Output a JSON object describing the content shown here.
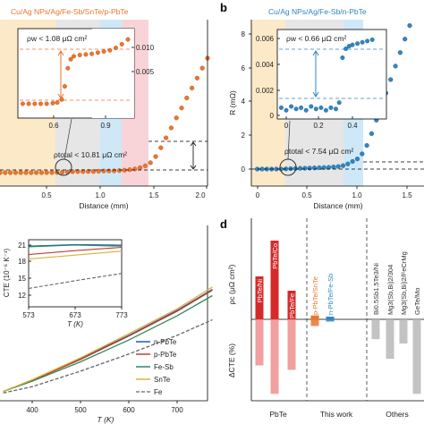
{
  "colors": {
    "orange": "#e9762f",
    "blue": "#2f86c4",
    "red": "#d42a2a",
    "red_light": "#ef8e8e",
    "grey": "#8c8c8c",
    "grey_light": "#b8b8b8",
    "n_pbte": "#1f5fa8",
    "p_pbte": "#c43a31",
    "fe_sb": "#2e8b57",
    "snte": "#d9b13a",
    "fe": "#666666",
    "band_yellow": "#fbe9c8",
    "band_grey": "#e6e6e6",
    "band_blue": "#cfe8f7",
    "band_pink": "#f8d4d8"
  },
  "panels": {
    "a": {
      "title": "Cu/Ag NPs/Ag/Fe-Sb/SnTe/p-PbTe"
    },
    "b": {
      "letter": "b",
      "title": "Cu/Ag NPs/Ag/Fe-Sb/n-PbTe"
    },
    "d": {
      "letter": "d"
    }
  },
  "chart_data": [
    {
      "id": "a",
      "type": "scatter",
      "title": "Cu/Ag NPs/Ag/Fe-Sb/SnTe/p-PbTe",
      "xlabel": "Distance (mm)",
      "xticks": [
        "0.5",
        "1.0",
        "1.5",
        "2.0"
      ],
      "xlim": [
        0,
        2.0
      ],
      "ylim": [
        -0.5,
        11
      ],
      "points": [
        [
          0.0,
          0.0
        ],
        [
          0.05,
          0.0
        ],
        [
          0.1,
          0.0
        ],
        [
          0.15,
          0.0
        ],
        [
          0.2,
          0.0
        ],
        [
          0.25,
          0.0
        ],
        [
          0.3,
          0.0
        ],
        [
          0.35,
          0.0
        ],
        [
          0.4,
          0.0
        ],
        [
          0.45,
          0.01
        ],
        [
          0.5,
          0.01
        ],
        [
          0.55,
          0.02
        ],
        [
          0.6,
          0.03
        ],
        [
          0.65,
          0.05
        ],
        [
          0.7,
          0.08
        ],
        [
          0.75,
          0.09
        ],
        [
          0.8,
          0.09
        ],
        [
          0.85,
          0.1
        ],
        [
          0.9,
          0.1
        ],
        [
          0.95,
          0.12
        ],
        [
          1.0,
          0.13
        ],
        [
          1.05,
          0.14
        ],
        [
          1.1,
          0.15
        ],
        [
          1.15,
          0.17
        ],
        [
          1.2,
          0.2
        ],
        [
          1.25,
          0.24
        ],
        [
          1.3,
          0.3
        ],
        [
          1.35,
          0.4
        ],
        [
          1.4,
          0.55
        ],
        [
          1.45,
          0.8
        ],
        [
          1.5,
          1.3
        ],
        [
          1.55,
          2.0
        ],
        [
          1.6,
          2.8
        ],
        [
          1.65,
          3.6
        ],
        [
          1.7,
          4.4
        ],
        [
          1.75,
          5.2
        ],
        [
          1.8,
          6.0
        ],
        [
          1.85,
          6.8
        ],
        [
          1.9,
          7.6
        ],
        [
          1.95,
          8.4
        ],
        [
          2.0,
          9.2
        ]
      ],
      "annotation": "ρtotal < 10.81 μΩ cm²",
      "inset": {
        "xticks": [
          "0.6",
          "0.9"
        ],
        "yticks": [
          "0.005",
          "0.010"
        ],
        "xlim": [
          0.3,
          1.05
        ],
        "ylim": [
          -0.0005,
          0.012
        ],
        "annotation": "ρw < 1.08 μΩ cm²",
        "points": [
          [
            0.32,
            0.0001
          ],
          [
            0.36,
            0.0001
          ],
          [
            0.4,
            0.0001
          ],
          [
            0.44,
            0.0001
          ],
          [
            0.48,
            0.0001
          ],
          [
            0.52,
            0.0002
          ],
          [
            0.55,
            0.0003
          ],
          [
            0.58,
            0.0008
          ],
          [
            0.6,
            0.003
          ],
          [
            0.62,
            0.006
          ],
          [
            0.64,
            0.0075
          ],
          [
            0.66,
            0.008
          ],
          [
            0.7,
            0.0082
          ],
          [
            0.74,
            0.0083
          ],
          [
            0.78,
            0.0084
          ],
          [
            0.82,
            0.0086
          ],
          [
            0.86,
            0.0088
          ],
          [
            0.9,
            0.009
          ],
          [
            0.94,
            0.0094
          ],
          [
            0.98,
            0.01
          ],
          [
            1.02,
            0.0108
          ]
        ]
      }
    },
    {
      "id": "b",
      "type": "scatter",
      "title": "Cu/Ag NPs/Ag/Fe-Sb/n-PbTe",
      "xlabel": "Distance (mm)",
      "ylabel": "R (mΩ)",
      "xticks": [
        "0",
        "0.5",
        "1.0",
        "1.5"
      ],
      "yticks": [
        "0",
        "2",
        "4",
        "6",
        "8"
      ],
      "xlim": [
        -0.1,
        1.75
      ],
      "ylim": [
        -0.4,
        9.0
      ],
      "points": [
        [
          0.0,
          0.0
        ],
        [
          0.05,
          0.0
        ],
        [
          0.1,
          0.0
        ],
        [
          0.15,
          0.0
        ],
        [
          0.2,
          0.0
        ],
        [
          0.25,
          0.0
        ],
        [
          0.3,
          0.01
        ],
        [
          0.35,
          0.02
        ],
        [
          0.4,
          0.03
        ],
        [
          0.45,
          0.04
        ],
        [
          0.5,
          0.05
        ],
        [
          0.55,
          0.06
        ],
        [
          0.6,
          0.07
        ],
        [
          0.65,
          0.08
        ],
        [
          0.7,
          0.09
        ],
        [
          0.75,
          0.1
        ],
        [
          0.8,
          0.12
        ],
        [
          0.85,
          0.15
        ],
        [
          0.9,
          0.2
        ],
        [
          0.95,
          0.3
        ],
        [
          1.0,
          0.45
        ],
        [
          1.05,
          0.6
        ],
        [
          1.1,
          0.9
        ],
        [
          1.15,
          1.4
        ],
        [
          1.2,
          2.1
        ],
        [
          1.25,
          2.9
        ],
        [
          1.3,
          3.7
        ],
        [
          1.35,
          4.5
        ],
        [
          1.4,
          5.3
        ],
        [
          1.45,
          6.1
        ],
        [
          1.5,
          6.9
        ],
        [
          1.55,
          7.7
        ],
        [
          1.6,
          8.5
        ]
      ],
      "annotation": "ρtotal < 7.54 μΩ cm²",
      "inset": {
        "xticks": [
          "0",
          "0.2",
          "0.4"
        ],
        "yticks": [
          "0",
          "0.002",
          "0.004",
          "0.006"
        ],
        "xlim": [
          -0.05,
          0.55
        ],
        "ylim": [
          -0.0004,
          0.0068
        ],
        "annotation": "ρw < 0.66 μΩ cm²",
        "points": [
          [
            -0.03,
            0.0006
          ],
          [
            0.0,
            0.0004
          ],
          [
            0.03,
            0.0007
          ],
          [
            0.06,
            0.0005
          ],
          [
            0.09,
            0.0006
          ],
          [
            0.12,
            0.0004
          ],
          [
            0.15,
            0.0007
          ],
          [
            0.18,
            0.0005
          ],
          [
            0.21,
            0.0006
          ],
          [
            0.24,
            0.0004
          ],
          [
            0.27,
            0.0006
          ],
          [
            0.3,
            0.0005
          ],
          [
            0.32,
            0.001
          ],
          [
            0.34,
            0.0045
          ],
          [
            0.36,
            0.0052
          ],
          [
            0.38,
            0.0054
          ],
          [
            0.4,
            0.0055
          ],
          [
            0.43,
            0.0056
          ],
          [
            0.46,
            0.0057
          ],
          [
            0.49,
            0.0058
          ],
          [
            0.52,
            0.0059
          ]
        ]
      }
    },
    {
      "id": "c",
      "type": "line",
      "xlabel": "T (K)",
      "xticks": [
        "400",
        "500",
        "600",
        "700"
      ],
      "xlim": [
        340,
        790
      ],
      "ylim": [
        -1,
        16
      ],
      "series": [
        {
          "name": "n-PbTe",
          "x": [
            340,
            400,
            500,
            600,
            700,
            773
          ],
          "y": [
            0.2,
            1.6,
            4.4,
            7.4,
            10.6,
            13.3
          ]
        },
        {
          "name": "p-PbTe",
          "x": [
            340,
            400,
            500,
            600,
            700,
            773
          ],
          "y": [
            0.2,
            1.6,
            4.3,
            7.3,
            10.5,
            13.2
          ]
        },
        {
          "name": "Fe-Sb",
          "x": [
            340,
            400,
            500,
            600,
            700,
            773
          ],
          "y": [
            0.2,
            1.5,
            4.0,
            6.8,
            9.9,
            12.5
          ]
        },
        {
          "name": "SnTe",
          "x": [
            340,
            400,
            500,
            600,
            700,
            773
          ],
          "y": [
            0.2,
            1.7,
            4.5,
            7.6,
            10.8,
            13.6
          ]
        },
        {
          "name": "Fe",
          "x": [
            340,
            400,
            500,
            600,
            700,
            773
          ],
          "y": [
            0.0,
            0.8,
            2.8,
            5.0,
            7.4,
            9.4
          ]
        }
      ],
      "inset": {
        "ylabel": "CTE (10⁻⁶ K⁻¹)",
        "xlabel": "T (K)",
        "xticks": [
          "573",
          "673",
          "773"
        ],
        "yticks": [
          "12",
          "15",
          "18",
          "21"
        ],
        "xlim": [
          573,
          773
        ],
        "ylim": [
          10.5,
          22.5
        ],
        "series": [
          {
            "name": "n-PbTe",
            "x": [
              573,
              673,
              773
            ],
            "y": [
              20.8,
              21.1,
              21.0
            ]
          },
          {
            "name": "p-PbTe",
            "x": [
              573,
              673,
              773
            ],
            "y": [
              19.3,
              20.0,
              20.6
            ]
          },
          {
            "name": "Fe-Sb",
            "x": [
              573,
              673,
              773
            ],
            "y": [
              20.7,
              21.0,
              20.8
            ]
          },
          {
            "name": "SnTe",
            "x": [
              573,
              673,
              773
            ],
            "y": [
              18.5,
              19.2,
              19.9
            ]
          },
          {
            "name": "Fe",
            "x": [
              573,
              673,
              773
            ],
            "y": [
              13.2,
              14.6,
              15.9
            ]
          }
        ]
      }
    },
    {
      "id": "d",
      "type": "bar",
      "ylabel_top": "ρc (μΩ cm²)",
      "ylabel_bottom": "ΔCTE (%)",
      "groups": [
        "PbTe",
        "This work",
        "Others"
      ],
      "bars": [
        {
          "label": "PbTe/Ni",
          "group": "PbTe",
          "rho": 12,
          "dcte": -21
        },
        {
          "label": "PbTe/Co",
          "group": "PbTe",
          "rho": 22,
          "dcte": -34
        },
        {
          "label": "PbTe/Fe",
          "group": "PbTe",
          "rho": 8,
          "dcte": -23
        },
        {
          "label": "p-PbTe/SnTe",
          "group": "This work",
          "rho": 1.08,
          "dcte": -3
        },
        {
          "label": "n-PbTe/Fe-Sb",
          "group": "This work",
          "rho": 0.66,
          "dcte": -1
        },
        {
          "label": "Bi0.5Sb1.5Te3/Ni",
          "group": "Others",
          "rho": 0,
          "dcte": -9
        },
        {
          "label": "Mg3(Sb,Bi)2/304",
          "group": "Others",
          "rho": 0,
          "dcte": -18
        },
        {
          "label": "Mg3(Sb,Bi)2/FeCrMg",
          "group": "Others",
          "rho": 0,
          "dcte": -11
        },
        {
          "label": "GeTe/Mo",
          "group": "Others",
          "rho": 0,
          "dcte": -34
        }
      ]
    }
  ]
}
